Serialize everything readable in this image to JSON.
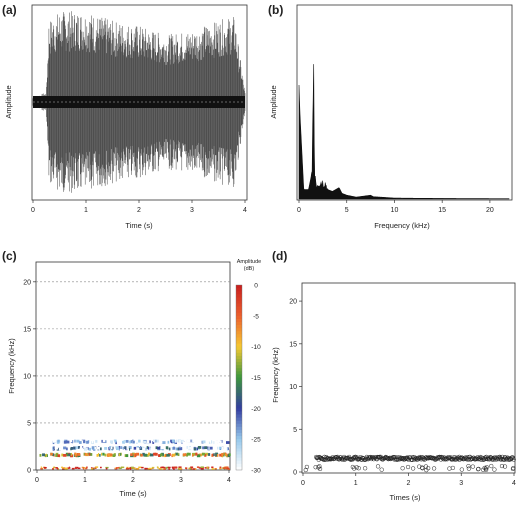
{
  "panels": {
    "a": {
      "label": "(a)",
      "xlabel": "Time (s)",
      "ylabel": "Amplitude"
    },
    "b": {
      "label": "(b)",
      "xlabel": "Frequency (kHz)",
      "ylabel": "Amplitude"
    },
    "c": {
      "label": "(c)",
      "xlabel": "Time (s)",
      "ylabel": "Frequency (kHz)",
      "colorbar_title": "Amplitude",
      "colorbar_unit": "(dB)"
    },
    "d": {
      "label": "(d)",
      "xlabel": "Times (s)",
      "ylabel": "Frequency (kHz)"
    }
  },
  "chart_data": [
    {
      "id": "a",
      "type": "line",
      "title": "",
      "xlabel": "Time (s)",
      "ylabel": "Amplitude",
      "xlim": [
        0,
        4
      ],
      "x_ticks": [
        0,
        1,
        2,
        3,
        4
      ],
      "y_ticks": [],
      "series": [
        {
          "description": "waveform envelope (relative)",
          "x": [
            0.0,
            0.25,
            0.3,
            0.5,
            1.0,
            1.5,
            2.0,
            2.5,
            3.0,
            3.5,
            3.8,
            4.0
          ],
          "max_amplitude": [
            0.05,
            0.1,
            0.85,
            0.95,
            0.95,
            0.85,
            0.8,
            0.7,
            0.75,
            0.85,
            0.9,
            0.1
          ]
        }
      ]
    },
    {
      "id": "b",
      "type": "line",
      "title": "",
      "xlabel": "Frequency (kHz)",
      "ylabel": "Amplitude",
      "xlim": [
        0,
        22
      ],
      "x_ticks": [
        0,
        5,
        10,
        15,
        20
      ],
      "y_ticks": [],
      "series": [
        {
          "x": [
            0,
            0.1,
            0.5,
            1.0,
            1.4,
            1.5,
            1.6,
            1.8,
            2.2,
            2.8,
            3.0,
            3.5,
            4.2,
            4.5,
            5.0,
            6.0,
            7.5,
            7.8,
            8.5,
            10,
            12,
            15,
            20,
            22
          ],
          "y": [
            0.6,
            0.45,
            0.05,
            0.05,
            0.15,
            0.97,
            0.2,
            0.08,
            0.1,
            0.09,
            0.05,
            0.04,
            0.06,
            0.03,
            0.02,
            0.01,
            0.02,
            0.012,
            0.01,
            0.005,
            0.004,
            0.003,
            0.002,
            0.002
          ]
        }
      ]
    },
    {
      "id": "c",
      "type": "heatmap",
      "title": "",
      "xlabel": "Time (s)",
      "ylabel": "Frequency (kHz)",
      "xlim": [
        0,
        4
      ],
      "ylim": [
        0,
        22
      ],
      "x_ticks": [
        0,
        1,
        2,
        3,
        4
      ],
      "y_ticks": [
        0,
        5,
        10,
        15,
        20
      ],
      "colorbar": {
        "label": "Amplitude",
        "unit": "(dB)",
        "range": [
          -30,
          0
        ],
        "ticks": [
          0,
          -5,
          -10,
          -15,
          -20,
          -25,
          -30
        ]
      },
      "bands": [
        {
          "freq_khz": 0.2,
          "level_db": -5
        },
        {
          "freq_khz": 1.6,
          "level_db": -10
        },
        {
          "freq_khz": 2.3,
          "level_db": -25
        },
        {
          "freq_khz": 3.0,
          "level_db": -28
        }
      ]
    },
    {
      "id": "d",
      "type": "scatter",
      "title": "",
      "xlabel": "Times (s)",
      "ylabel": "Frequency (kHz)",
      "xlim": [
        0,
        4
      ],
      "ylim": [
        0,
        22
      ],
      "x_ticks": [
        0,
        1,
        2,
        3,
        4
      ],
      "y_ticks": [
        0,
        5,
        10,
        15,
        20
      ],
      "series": [
        {
          "description": "dominant frequency track",
          "x_range": [
            0.25,
            4.0
          ],
          "y": 1.6
        },
        {
          "description": "low-frequency points",
          "x_range": [
            0.05,
            4.0
          ],
          "y": 0.2
        }
      ]
    }
  ],
  "colors": {
    "axis": "#333333",
    "waveform": "#111111",
    "grid": "#8a8a8a"
  }
}
